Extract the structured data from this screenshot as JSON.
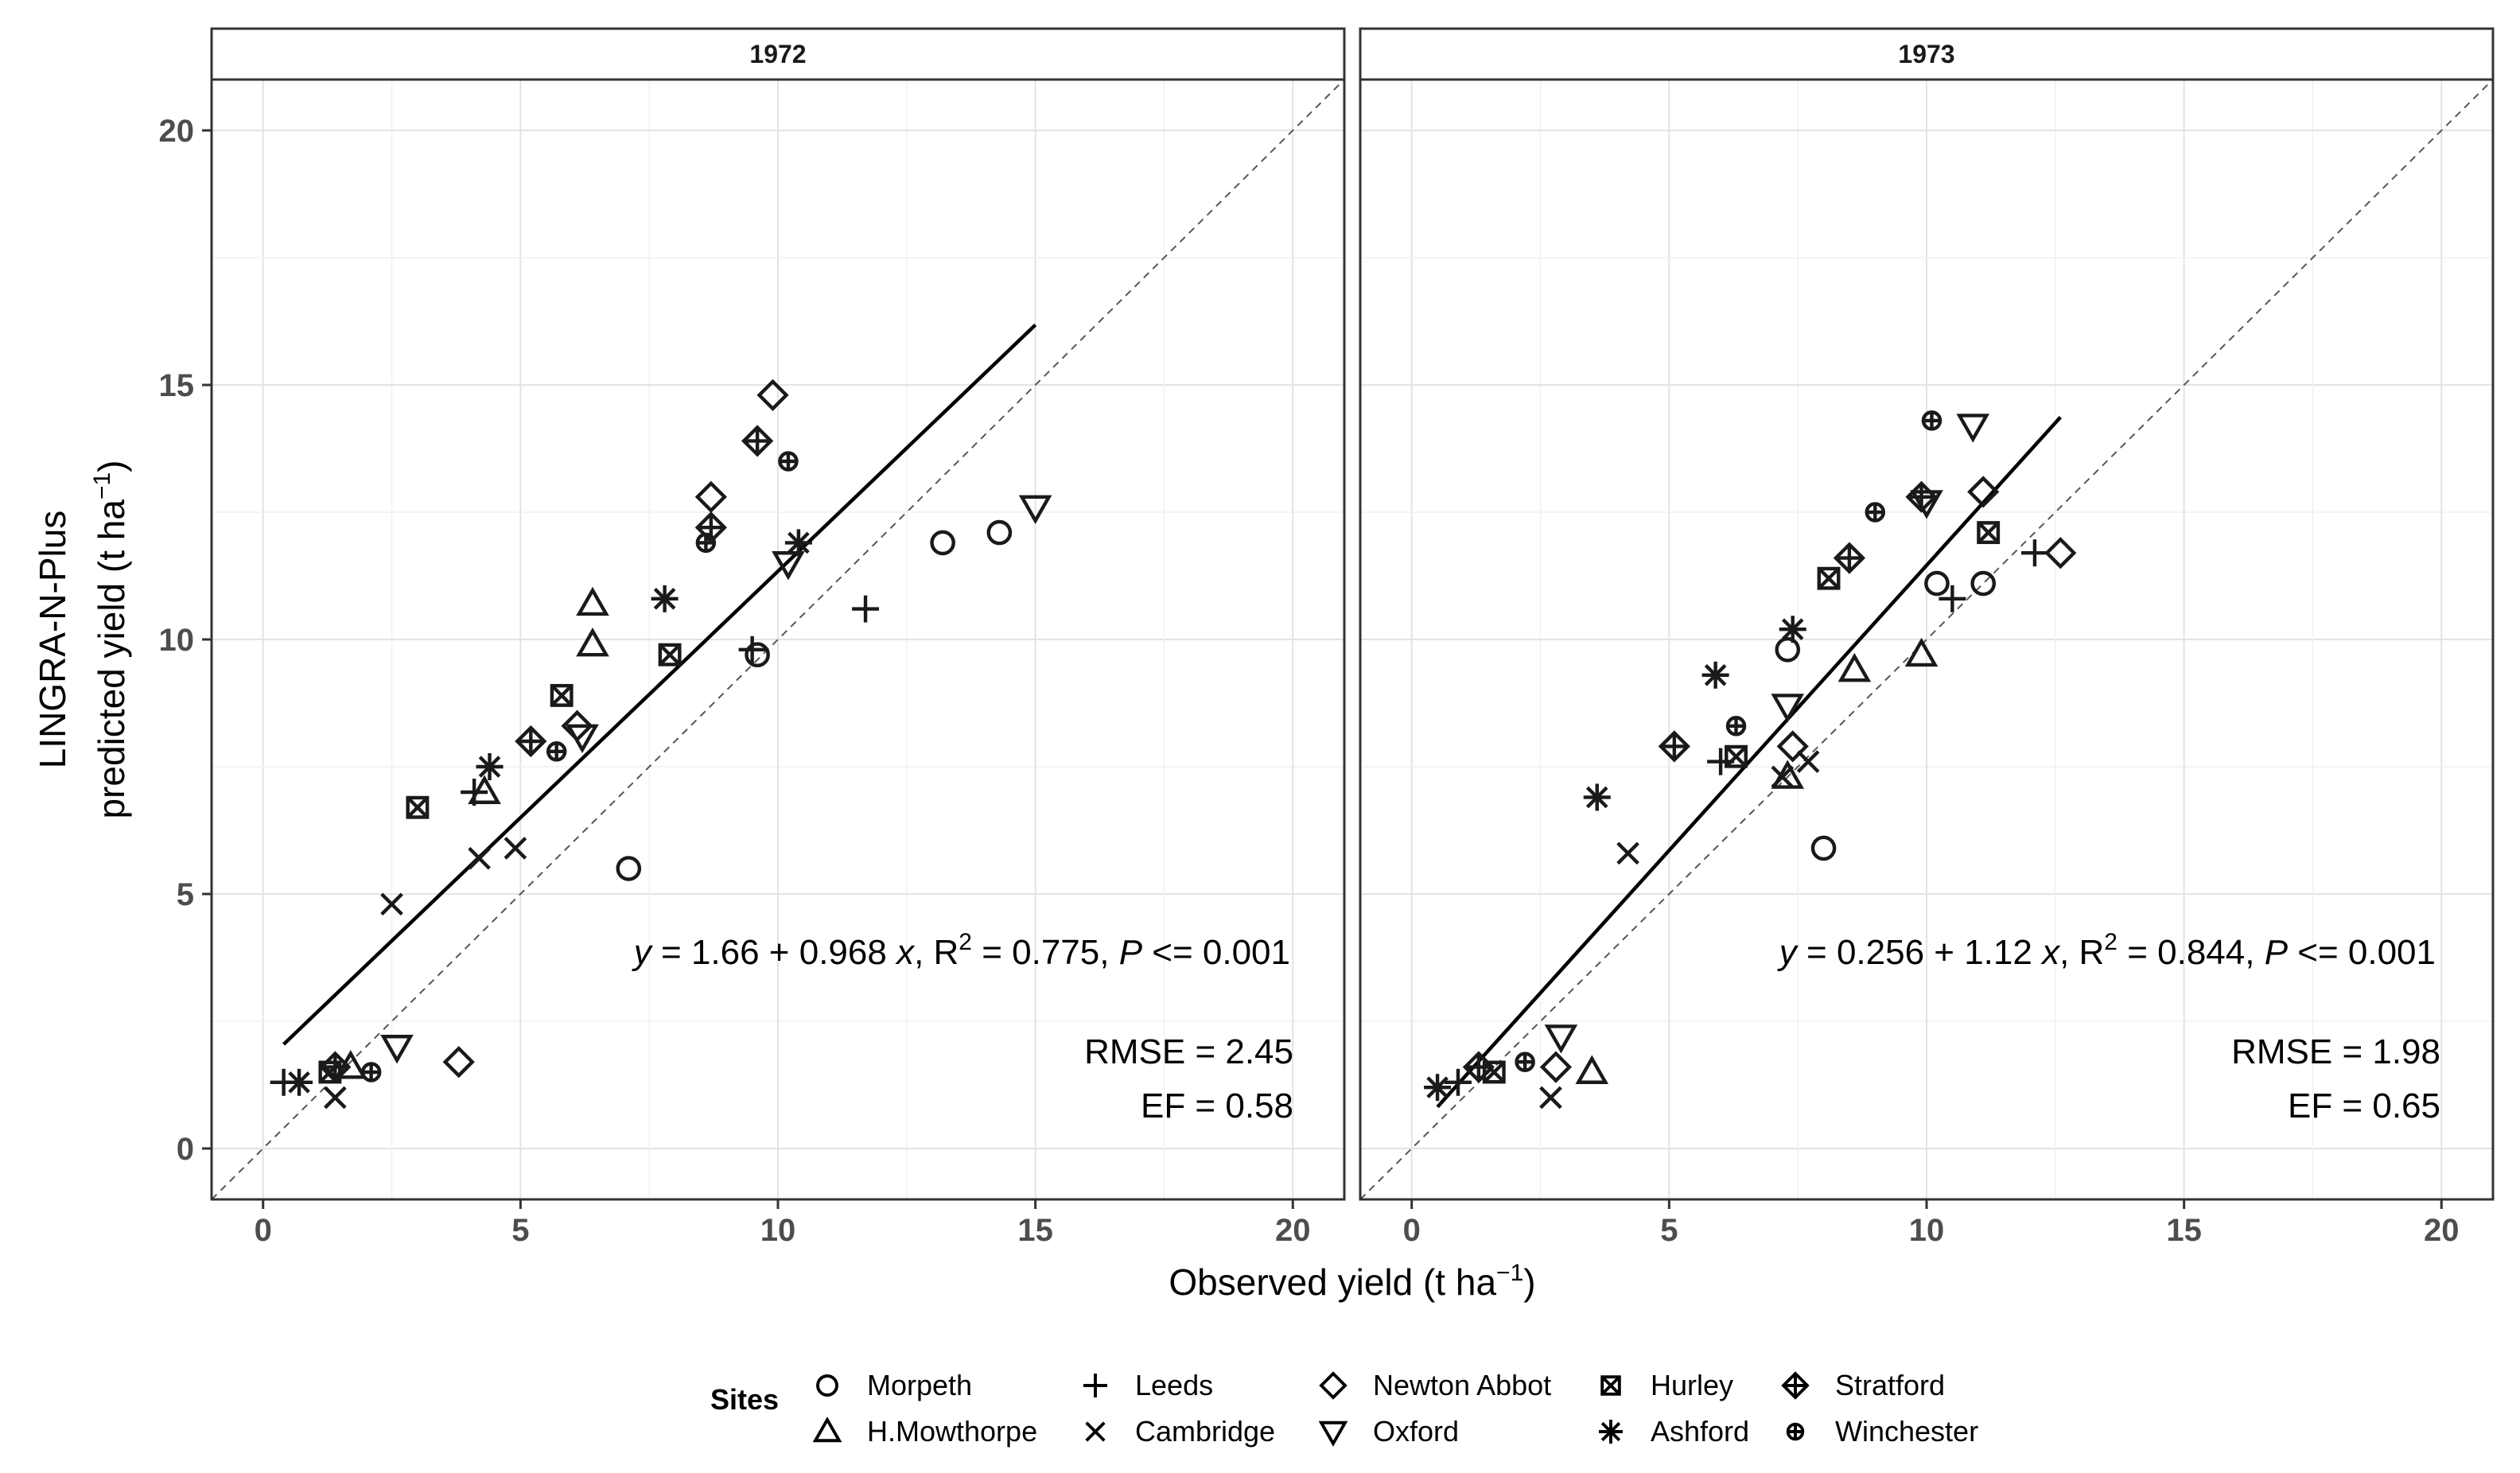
{
  "figure": {
    "y_axis_title_line1": "LINGRA-N-Plus",
    "y_axis_title_line2": "predicted yield (t ha",
    "y_axis_title_sup": "−1",
    "y_axis_title_close": ")",
    "x_axis_title": "Observed yield (t ha",
    "x_axis_title_sup": "−1",
    "x_axis_title_close": ")",
    "legend_title": "Sites"
  },
  "legend": [
    {
      "site": "Morpeth",
      "symbol": "circle"
    },
    {
      "site": "H.Mowthorpe",
      "symbol": "triangle-up"
    },
    {
      "site": "Leeds",
      "symbol": "plus"
    },
    {
      "site": "Cambridge",
      "symbol": "cross"
    },
    {
      "site": "Newton Abbot",
      "symbol": "diamond"
    },
    {
      "site": "Oxford",
      "symbol": "triangle-down"
    },
    {
      "site": "Hurley",
      "symbol": "square-cross"
    },
    {
      "site": "Ashford",
      "symbol": "asterisk"
    },
    {
      "site": "Stratford",
      "symbol": "diamond-plus"
    },
    {
      "site": "Winchester",
      "symbol": "circle-plus"
    }
  ],
  "chart_data": [
    {
      "type": "scatter",
      "title": "1972",
      "xlabel": "Observed yield (t ha−1)",
      "ylabel": "LINGRA-N-Plus predicted yield (t ha−1)",
      "xlim": [
        -1,
        21
      ],
      "ylim": [
        -1,
        21
      ],
      "x_ticks": [
        0,
        5,
        10,
        15,
        20
      ],
      "y_ticks": [
        0,
        5,
        10,
        15,
        20
      ],
      "grid": true,
      "one_to_one_line": true,
      "regression": {
        "intercept": 1.66,
        "slope": 0.968,
        "x_range": [
          0.4,
          15
        ]
      },
      "annotation": {
        "eq_prefix": "y",
        "eq_body": " = 1.66 + 0.968 ",
        "eq_x": "x",
        "eq_r": ", R",
        "eq_r_sup": "2",
        "eq_rest": " = 0.775, ",
        "eq_p": "P",
        "eq_p_rest": " <= 0.001",
        "rmse": "RMSE = 2.45",
        "ef": "EF = 0.58"
      },
      "series": [
        {
          "name": "Morpeth",
          "points": [
            [
              7.1,
              5.5
            ],
            [
              9.6,
              9.7
            ],
            [
              13.2,
              11.9
            ],
            [
              14.3,
              12.1
            ]
          ]
        },
        {
          "name": "H.Mowthorpe",
          "points": [
            [
              1.7,
              1.6
            ],
            [
              4.3,
              7.0
            ],
            [
              6.4,
              10.7
            ],
            [
              6.4,
              9.9
            ]
          ]
        },
        {
          "name": "Leeds",
          "points": [
            [
              0.4,
              1.3
            ],
            [
              4.1,
              7.0
            ],
            [
              9.5,
              9.8
            ],
            [
              11.7,
              10.6
            ]
          ]
        },
        {
          "name": "Cambridge",
          "points": [
            [
              1.4,
              1.0
            ],
            [
              2.5,
              4.8
            ],
            [
              4.2,
              5.7
            ],
            [
              4.9,
              5.9
            ]
          ]
        },
        {
          "name": "Newton Abbot",
          "points": [
            [
              3.8,
              1.7
            ],
            [
              6.1,
              8.3
            ],
            [
              8.7,
              12.8
            ],
            [
              9.9,
              14.8
            ]
          ]
        },
        {
          "name": "Oxford",
          "points": [
            [
              2.6,
              2.0
            ],
            [
              6.2,
              8.1
            ],
            [
              10.2,
              11.5
            ],
            [
              15.0,
              12.6
            ]
          ]
        },
        {
          "name": "Hurley",
          "points": [
            [
              1.3,
              1.5
            ],
            [
              3.0,
              6.7
            ],
            [
              5.8,
              8.9
            ],
            [
              7.9,
              9.7
            ]
          ]
        },
        {
          "name": "Ashford",
          "points": [
            [
              0.7,
              1.3
            ],
            [
              4.4,
              7.5
            ],
            [
              7.8,
              10.8
            ],
            [
              10.4,
              11.9
            ]
          ]
        },
        {
          "name": "Stratford",
          "points": [
            [
              1.4,
              1.6
            ],
            [
              5.2,
              8.0
            ],
            [
              8.7,
              12.2
            ],
            [
              9.6,
              13.9
            ]
          ]
        },
        {
          "name": "Winchester",
          "points": [
            [
              2.1,
              1.5
            ],
            [
              5.7,
              7.8
            ],
            [
              8.6,
              11.9
            ],
            [
              10.2,
              13.5
            ]
          ]
        }
      ]
    },
    {
      "type": "scatter",
      "title": "1973",
      "xlabel": "Observed yield (t ha−1)",
      "ylabel": "LINGRA-N-Plus predicted yield (t ha−1)",
      "xlim": [
        -1,
        21
      ],
      "ylim": [
        -1,
        21
      ],
      "x_ticks": [
        0,
        5,
        10,
        15,
        20
      ],
      "y_ticks": [
        0,
        5,
        10,
        15,
        20
      ],
      "grid": true,
      "one_to_one_line": true,
      "regression": {
        "intercept": 0.256,
        "slope": 1.12,
        "x_range": [
          0.5,
          12.6
        ]
      },
      "annotation": {
        "eq_prefix": "y",
        "eq_body": " = 0.256 + 1.12 ",
        "eq_x": "x",
        "eq_r": ", R",
        "eq_r_sup": "2",
        "eq_rest": " = 0.844, ",
        "eq_p": "P",
        "eq_p_rest": " <= 0.001",
        "rmse": "RMSE = 1.98",
        "ef": "EF = 0.65"
      },
      "series": [
        {
          "name": "Morpeth",
          "points": [
            [
              8.0,
              5.9
            ],
            [
              7.3,
              9.8
            ],
            [
              10.2,
              11.1
            ],
            [
              11.1,
              11.1
            ]
          ]
        },
        {
          "name": "H.Mowthorpe",
          "points": [
            [
              3.5,
              1.5
            ],
            [
              7.3,
              7.3
            ],
            [
              8.6,
              9.4
            ],
            [
              9.9,
              9.7
            ]
          ]
        },
        {
          "name": "Leeds",
          "points": [
            [
              0.9,
              1.3
            ],
            [
              6.0,
              7.6
            ],
            [
              10.5,
              10.8
            ],
            [
              12.1,
              11.7
            ]
          ]
        },
        {
          "name": "Cambridge",
          "points": [
            [
              2.7,
              1.0
            ],
            [
              4.2,
              5.8
            ],
            [
              7.7,
              7.6
            ],
            [
              7.2,
              7.3
            ]
          ]
        },
        {
          "name": "Newton Abbot",
          "points": [
            [
              2.8,
              1.6
            ],
            [
              7.4,
              7.9
            ],
            [
              11.1,
              12.9
            ],
            [
              12.6,
              11.7
            ]
          ]
        },
        {
          "name": "Oxford",
          "points": [
            [
              2.9,
              2.2
            ],
            [
              7.3,
              8.7
            ],
            [
              10.0,
              12.7
            ],
            [
              10.9,
              14.2
            ]
          ]
        },
        {
          "name": "Hurley",
          "points": [
            [
              1.6,
              1.5
            ],
            [
              6.3,
              7.7
            ],
            [
              8.1,
              11.2
            ],
            [
              11.2,
              12.1
            ]
          ]
        },
        {
          "name": "Ashford",
          "points": [
            [
              0.5,
              1.2
            ],
            [
              3.6,
              6.9
            ],
            [
              5.9,
              9.3
            ],
            [
              7.4,
              10.2
            ]
          ]
        },
        {
          "name": "Stratford",
          "points": [
            [
              1.3,
              1.6
            ],
            [
              5.1,
              7.9
            ],
            [
              8.5,
              11.6
            ],
            [
              9.9,
              12.8
            ]
          ]
        },
        {
          "name": "Winchester",
          "points": [
            [
              2.2,
              1.7
            ],
            [
              6.3,
              8.3
            ],
            [
              9.0,
              12.5
            ],
            [
              10.1,
              14.3
            ]
          ]
        }
      ]
    }
  ]
}
